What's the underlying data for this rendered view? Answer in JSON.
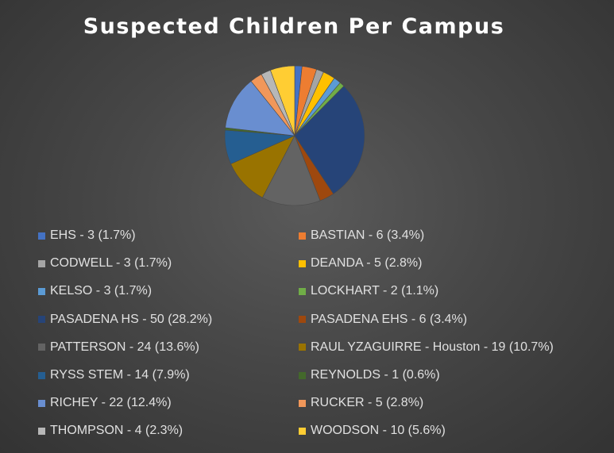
{
  "chart_data": {
    "type": "pie",
    "title": "Suspected Children Per Campus",
    "legend_position": "bottom",
    "slices": [
      {
        "label": "EHS - 3 (1.7%)",
        "value": 3,
        "percent": 1.7,
        "color": "#4472c4"
      },
      {
        "label": "BASTIAN - 6 (3.4%)",
        "value": 6,
        "percent": 3.4,
        "color": "#ed7d31"
      },
      {
        "label": "CODWELL - 3 (1.7%)",
        "value": 3,
        "percent": 1.7,
        "color": "#a5a5a5"
      },
      {
        "label": "DEANDA - 5 (2.8%)",
        "value": 5,
        "percent": 2.8,
        "color": "#ffc000"
      },
      {
        "label": "KELSO - 3 (1.7%)",
        "value": 3,
        "percent": 1.7,
        "color": "#5b9bd5"
      },
      {
        "label": "LOCKHART - 2 (1.1%)",
        "value": 2,
        "percent": 1.1,
        "color": "#70ad47"
      },
      {
        "label": "PASADENA HS - 50 (28.2%)",
        "value": 50,
        "percent": 28.2,
        "color": "#264478"
      },
      {
        "label": "PASADENA EHS - 6 (3.4%)",
        "value": 6,
        "percent": 3.4,
        "color": "#9e480e"
      },
      {
        "label": "PATTERSON - 24 (13.6%)",
        "value": 24,
        "percent": 13.6,
        "color": "#636363"
      },
      {
        "label": "RAUL YZAGUIRRE - Houston - 19 (10.7%)",
        "value": 19,
        "percent": 10.7,
        "color": "#997300"
      },
      {
        "label": "RYSS STEM - 14 (7.9%)",
        "value": 14,
        "percent": 7.9,
        "color": "#255e91"
      },
      {
        "label": "REYNOLDS - 1 (0.6%)",
        "value": 1,
        "percent": 0.6,
        "color": "#43682b"
      },
      {
        "label": "RICHEY - 22 (12.4%)",
        "value": 22,
        "percent": 12.4,
        "color": "#698ed0"
      },
      {
        "label": "RUCKER - 5 (2.8%)",
        "value": 5,
        "percent": 2.8,
        "color": "#f1975a"
      },
      {
        "label": "THOMPSON - 4 (2.3%)",
        "value": 4,
        "percent": 2.3,
        "color": "#b7b7b7"
      },
      {
        "label": "WOODSON - 10 (5.6%)",
        "value": 10,
        "percent": 5.6,
        "color": "#ffcd33"
      }
    ]
  }
}
